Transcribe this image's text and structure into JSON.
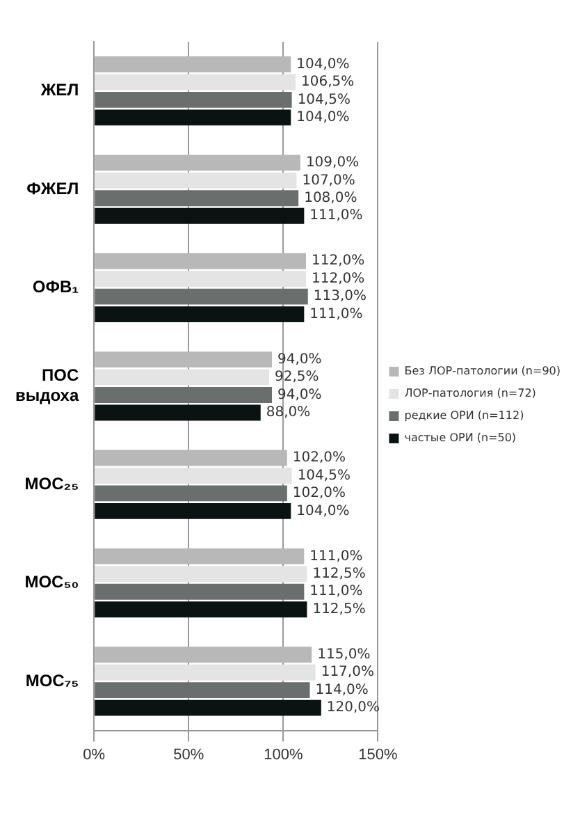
{
  "chart_data": {
    "type": "bar",
    "orientation": "horizontal",
    "categories": [
      "ЖЕЛ",
      "ФЖЕЛ",
      "ОФВ₁",
      "ПОС выдоха",
      "МОС₂₅",
      "МОС₅₀",
      "МОС₇₅"
    ],
    "series": [
      {
        "name": "Без ЛОР-патологии (n=90)",
        "color": "#b8b8b8",
        "values": [
          104,
          109,
          112,
          94,
          102,
          111,
          115
        ],
        "value_labels": [
          "104,0%",
          "109,0%",
          "112,0%",
          "94,0%",
          "102,0%",
          "111,0%",
          "115,0%"
        ]
      },
      {
        "name": "ЛОР-патология (n=72)",
        "color": "#e4e4e4",
        "values": [
          106.5,
          107,
          112,
          92.5,
          104.5,
          112.5,
          117
        ],
        "value_labels": [
          "106,5%",
          "107,0%",
          "112,0%",
          "92,5%",
          "104,5%",
          "112,5%",
          "117,0%"
        ]
      },
      {
        "name": "редкие ОРИ (n=112)",
        "color": "#6a6e6d",
        "values": [
          104.5,
          108,
          113,
          94,
          102,
          111,
          114
        ],
        "value_labels": [
          "104,5%",
          "108,0%",
          "113,0%",
          "94,0%",
          "102,0%",
          "111,0%",
          "114,0%"
        ]
      },
      {
        "name": "частые ОРИ (n=50)",
        "color": "#0a1312",
        "values": [
          104,
          111,
          111,
          88,
          104,
          112.5,
          120
        ],
        "value_labels": [
          "104,0%",
          "111,0%",
          "111,0%",
          "88,0%",
          "104,0%",
          "112,5%",
          "120,0%"
        ]
      }
    ],
    "xlim": [
      0,
      150
    ],
    "xticks": [
      {
        "value": 0,
        "label": "0%"
      },
      {
        "value": 50,
        "label": "50%"
      },
      {
        "value": 100,
        "label": "100%"
      },
      {
        "value": 150,
        "label": "150%"
      }
    ],
    "grid": "x",
    "legend": "right"
  }
}
